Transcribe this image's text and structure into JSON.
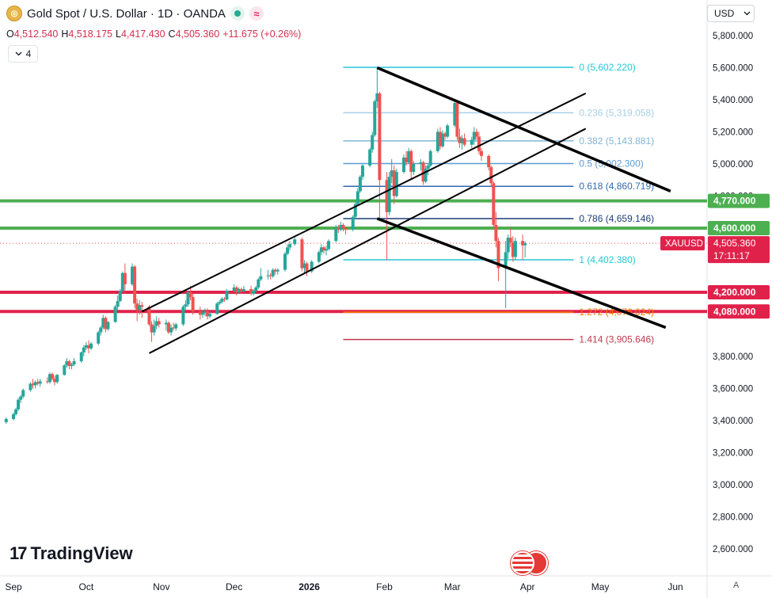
{
  "header": {
    "logo_glyph": "◎",
    "title": "Gold Spot / U.S. Dollar · 1D · OANDA",
    "wave_glyph": "≈"
  },
  "ohlc": {
    "open_label": "O",
    "open": "4,512.540",
    "high_label": "H",
    "high": "4,518.175",
    "low_label": "L",
    "low": "4,417.430",
    "close_label": "C",
    "close": "4,505.360",
    "change": "+11.675 (+0.26%)"
  },
  "indicator_toggle": {
    "count": "4",
    "icon": "chevron-down-icon"
  },
  "currency": "USD",
  "branding": {
    "mark": "17",
    "name": "TradingView"
  },
  "scale_mode_button": "A",
  "colors": {
    "up": "#26a69a",
    "down": "#ef5350",
    "green_level": "#4caf50",
    "red_level": "#e0224b",
    "fib_teal": "#26c6da",
    "fib_blue": "#5b9bd5",
    "fib_navy": "#1a3f7a",
    "fib_orange": "#f57c00",
    "fib_maroon": "#c0394b"
  },
  "chart_data": {
    "type": "candlestick",
    "symbol": "XAUUSD",
    "ylim": [
      2500,
      5900
    ],
    "y_ticks": [
      "5,800.000",
      "5,600.000",
      "5,400.000",
      "5,200.000",
      "5,000.000",
      "4,800.000",
      "3,800.000",
      "3,600.000",
      "3,400.000",
      "3,200.000",
      "3,000.000",
      "2,800.000",
      "2,600.000"
    ],
    "y_tick_values": [
      5800,
      5600,
      5400,
      5200,
      5000,
      4800,
      3800,
      3600,
      3400,
      3200,
      3000,
      2800,
      2600
    ],
    "x_ticks": [
      {
        "label": "Sep",
        "date": "2025-09-01"
      },
      {
        "label": "Oct",
        "date": "2025-10-01"
      },
      {
        "label": "Nov",
        "date": "2025-11-01"
      },
      {
        "label": "Dec",
        "date": "2025-12-01"
      },
      {
        "label": "2026",
        "date": "2026-01-01"
      },
      {
        "label": "Feb",
        "date": "2026-02-01"
      },
      {
        "label": "Mar",
        "date": "2026-03-01"
      },
      {
        "label": "Apr",
        "date": "2026-04-01"
      },
      {
        "label": "May",
        "date": "2026-05-01"
      },
      {
        "label": "Jun",
        "date": "2026-06-01"
      }
    ],
    "candles": [
      [
        "2025-08-29",
        3390,
        3420,
        3380,
        3410
      ],
      [
        "2025-09-01",
        3410,
        3450,
        3400,
        3440
      ],
      [
        "2025-09-02",
        3440,
        3480,
        3430,
        3470
      ],
      [
        "2025-09-03",
        3470,
        3540,
        3460,
        3530
      ],
      [
        "2025-09-04",
        3530,
        3560,
        3510,
        3550
      ],
      [
        "2025-09-05",
        3550,
        3600,
        3540,
        3590
      ],
      [
        "2025-09-08",
        3590,
        3640,
        3580,
        3630
      ],
      [
        "2025-09-09",
        3630,
        3660,
        3600,
        3620
      ],
      [
        "2025-09-10",
        3620,
        3650,
        3600,
        3640
      ],
      [
        "2025-09-11",
        3640,
        3660,
        3620,
        3630
      ],
      [
        "2025-09-12",
        3630,
        3660,
        3610,
        3645
      ],
      [
        "2025-09-15",
        3645,
        3670,
        3630,
        3640
      ],
      [
        "2025-09-16",
        3640,
        3700,
        3630,
        3690
      ],
      [
        "2025-09-17",
        3690,
        3700,
        3650,
        3660
      ],
      [
        "2025-09-18",
        3660,
        3680,
        3620,
        3640
      ],
      [
        "2025-09-19",
        3640,
        3690,
        3630,
        3685
      ],
      [
        "2025-09-22",
        3685,
        3750,
        3680,
        3745
      ],
      [
        "2025-09-23",
        3745,
        3790,
        3730,
        3770
      ],
      [
        "2025-09-24",
        3770,
        3780,
        3720,
        3740
      ],
      [
        "2025-09-25",
        3740,
        3760,
        3720,
        3750
      ],
      [
        "2025-09-26",
        3750,
        3790,
        3740,
        3770
      ],
      [
        "2025-09-29",
        3770,
        3830,
        3760,
        3825
      ],
      [
        "2025-09-30",
        3825,
        3870,
        3800,
        3855
      ],
      [
        "2025-10-01",
        3855,
        3890,
        3840,
        3870
      ],
      [
        "2025-10-02",
        3870,
        3900,
        3820,
        3850
      ],
      [
        "2025-10-03",
        3850,
        3890,
        3840,
        3880
      ],
      [
        "2025-10-06",
        3880,
        3960,
        3870,
        3950
      ],
      [
        "2025-10-07",
        3950,
        3990,
        3930,
        3980
      ],
      [
        "2025-10-08",
        3980,
        4060,
        3970,
        4040
      ],
      [
        "2025-10-09",
        4040,
        4050,
        3950,
        3970
      ],
      [
        "2025-10-10",
        3970,
        4020,
        3960,
        4015
      ],
      [
        "2025-10-13",
        4015,
        4120,
        4010,
        4110
      ],
      [
        "2025-10-14",
        4110,
        4180,
        4090,
        4145
      ],
      [
        "2025-10-15",
        4145,
        4220,
        4140,
        4210
      ],
      [
        "2025-10-16",
        4210,
        4330,
        4200,
        4320
      ],
      [
        "2025-10-17",
        4320,
        4380,
        4200,
        4250
      ],
      [
        "2025-10-20",
        4250,
        4380,
        4240,
        4360
      ],
      [
        "2025-10-21",
        4360,
        4370,
        4100,
        4130
      ],
      [
        "2025-10-22",
        4130,
        4160,
        4020,
        4090
      ],
      [
        "2025-10-23",
        4090,
        4150,
        4060,
        4120
      ],
      [
        "2025-10-24",
        4120,
        4140,
        4040,
        4110
      ],
      [
        "2025-10-27",
        4110,
        4120,
        3990,
        4000
      ],
      [
        "2025-10-28",
        4000,
        4020,
        3890,
        3950
      ],
      [
        "2025-10-29",
        3950,
        4030,
        3930,
        3990
      ],
      [
        "2025-10-30",
        3990,
        4050,
        3970,
        4020
      ],
      [
        "2025-10-31",
        4020,
        4040,
        3980,
        4000
      ],
      [
        "2025-11-03",
        4000,
        4030,
        3960,
        4010
      ],
      [
        "2025-11-04",
        4010,
        4020,
        3940,
        3950
      ],
      [
        "2025-11-05",
        3950,
        4000,
        3930,
        3980
      ],
      [
        "2025-11-06",
        3980,
        4010,
        3960,
        3975
      ],
      [
        "2025-11-07",
        3975,
        4010,
        3960,
        4000
      ],
      [
        "2025-11-10",
        4000,
        4120,
        3990,
        4110
      ],
      [
        "2025-11-11",
        4110,
        4150,
        4090,
        4125
      ],
      [
        "2025-11-12",
        4125,
        4210,
        4110,
        4200
      ],
      [
        "2025-11-13",
        4200,
        4240,
        4150,
        4170
      ],
      [
        "2025-11-14",
        4170,
        4190,
        4060,
        4080
      ],
      [
        "2025-11-17",
        4080,
        4110,
        4030,
        4060
      ],
      [
        "2025-11-18",
        4060,
        4090,
        4040,
        4070
      ],
      [
        "2025-11-19",
        4070,
        4100,
        4050,
        4080
      ],
      [
        "2025-11-20",
        4080,
        4100,
        4030,
        4050
      ],
      [
        "2025-11-21",
        4050,
        4080,
        4040,
        4065
      ],
      [
        "2025-11-24",
        4065,
        4140,
        4060,
        4130
      ],
      [
        "2025-11-25",
        4130,
        4150,
        4120,
        4140
      ],
      [
        "2025-11-26",
        4140,
        4170,
        4130,
        4160
      ],
      [
        "2025-11-27",
        4160,
        4170,
        4140,
        4155
      ],
      [
        "2025-11-28",
        4155,
        4220,
        4150,
        4210
      ],
      [
        "2025-12-01",
        4210,
        4250,
        4200,
        4230
      ],
      [
        "2025-12-02",
        4230,
        4240,
        4180,
        4200
      ],
      [
        "2025-12-03",
        4200,
        4230,
        4190,
        4220
      ],
      [
        "2025-12-04",
        4220,
        4230,
        4190,
        4205
      ],
      [
        "2025-12-05",
        4205,
        4240,
        4200,
        4220
      ],
      [
        "2025-12-08",
        4220,
        4240,
        4180,
        4190
      ],
      [
        "2025-12-09",
        4190,
        4220,
        4180,
        4210
      ],
      [
        "2025-12-10",
        4210,
        4240,
        4200,
        4230
      ],
      [
        "2025-12-11",
        4230,
        4290,
        4220,
        4280
      ],
      [
        "2025-12-12",
        4280,
        4350,
        4270,
        4300
      ],
      [
        "2025-12-15",
        4300,
        4340,
        4280,
        4305
      ],
      [
        "2025-12-16",
        4305,
        4320,
        4280,
        4300
      ],
      [
        "2025-12-17",
        4300,
        4350,
        4290,
        4340
      ],
      [
        "2025-12-18",
        4340,
        4350,
        4310,
        4330
      ],
      [
        "2025-12-19",
        4330,
        4350,
        4310,
        4340
      ],
      [
        "2025-12-22",
        4340,
        4450,
        4330,
        4440
      ],
      [
        "2025-12-23",
        4440,
        4500,
        4430,
        4480
      ],
      [
        "2025-12-24",
        4480,
        4520,
        4460,
        4500
      ],
      [
        "2025-12-26",
        4500,
        4550,
        4490,
        4530
      ],
      [
        "2025-12-29",
        4530,
        4540,
        4330,
        4350
      ],
      [
        "2025-12-30",
        4350,
        4400,
        4320,
        4380
      ],
      [
        "2025-12-31",
        4380,
        4390,
        4300,
        4330
      ],
      [
        "2026-01-02",
        4330,
        4400,
        4320,
        4390
      ],
      [
        "2026-01-05",
        4390,
        4460,
        4380,
        4450
      ],
      [
        "2026-01-06",
        4450,
        4500,
        4430,
        4480
      ],
      [
        "2026-01-07",
        4480,
        4490,
        4440,
        4460
      ],
      [
        "2026-01-08",
        4460,
        4490,
        4430,
        4470
      ],
      [
        "2026-01-09",
        4470,
        4530,
        4460,
        4520
      ],
      [
        "2026-01-12",
        4520,
        4620,
        4510,
        4600
      ],
      [
        "2026-01-13",
        4600,
        4620,
        4570,
        4590
      ],
      [
        "2026-01-14",
        4590,
        4640,
        4580,
        4620
      ],
      [
        "2026-01-15",
        4620,
        4630,
        4580,
        4600
      ],
      [
        "2026-01-16",
        4600,
        4610,
        4560,
        4590
      ],
      [
        "2026-01-19",
        4590,
        4680,
        4580,
        4670
      ],
      [
        "2026-01-20",
        4670,
        4760,
        4660,
        4750
      ],
      [
        "2026-01-21",
        4750,
        4850,
        4740,
        4830
      ],
      [
        "2026-01-22",
        4830,
        4930,
        4820,
        4920
      ],
      [
        "2026-01-23",
        4920,
        5000,
        4900,
        4990
      ],
      [
        "2026-01-26",
        4990,
        5100,
        4980,
        5090
      ],
      [
        "2026-01-27",
        5090,
        5200,
        5070,
        5180
      ],
      [
        "2026-01-28",
        5180,
        5400,
        5170,
        5390
      ],
      [
        "2026-01-29",
        5390,
        5600,
        5350,
        5440
      ],
      [
        "2026-01-30",
        5440,
        5450,
        4650,
        4900
      ],
      [
        "2026-02-02",
        4900,
        4950,
        4400,
        4700
      ],
      [
        "2026-02-03",
        4700,
        4950,
        4680,
        4920
      ],
      [
        "2026-02-04",
        4920,
        5030,
        4880,
        4960
      ],
      [
        "2026-02-05",
        4960,
        4990,
        4750,
        4800
      ],
      [
        "2026-02-06",
        4800,
        4970,
        4790,
        4950
      ],
      [
        "2026-02-09",
        4950,
        5060,
        4940,
        5040
      ],
      [
        "2026-02-10",
        5040,
        5080,
        4990,
        5010
      ],
      [
        "2026-02-11",
        5010,
        5100,
        5000,
        5080
      ],
      [
        "2026-02-12",
        5080,
        5090,
        4900,
        4950
      ],
      [
        "2026-02-13",
        4950,
        5020,
        4930,
        5000
      ],
      [
        "2026-02-16",
        5000,
        5030,
        4960,
        5010
      ],
      [
        "2026-02-17",
        5010,
        5020,
        4870,
        4890
      ],
      [
        "2026-02-18",
        4890,
        4990,
        4880,
        4970
      ],
      [
        "2026-02-19",
        4970,
        5000,
        4930,
        4990
      ],
      [
        "2026-02-20",
        4990,
        5090,
        4980,
        5080
      ],
      [
        "2026-02-23",
        5080,
        5220,
        5070,
        5200
      ],
      [
        "2026-02-24",
        5200,
        5230,
        5090,
        5110
      ],
      [
        "2026-02-25",
        5110,
        5210,
        5100,
        5190
      ],
      [
        "2026-02-26",
        5190,
        5200,
        5150,
        5170
      ],
      [
        "2026-02-27",
        5170,
        5250,
        5160,
        5240
      ],
      [
        "2026-03-02",
        5240,
        5400,
        5230,
        5380
      ],
      [
        "2026-03-03",
        5380,
        5390,
        5150,
        5170
      ],
      [
        "2026-03-04",
        5170,
        5220,
        5100,
        5130
      ],
      [
        "2026-03-05",
        5130,
        5180,
        5090,
        5160
      ],
      [
        "2026-03-06",
        5160,
        5190,
        5110,
        5120
      ],
      [
        "2026-03-09",
        5120,
        5170,
        5100,
        5150
      ],
      [
        "2026-03-10",
        5150,
        5230,
        5120,
        5200
      ],
      [
        "2026-03-11",
        5200,
        5220,
        5150,
        5170
      ],
      [
        "2026-03-12",
        5170,
        5200,
        5060,
        5080
      ],
      [
        "2026-03-13",
        5080,
        5100,
        5020,
        5050
      ],
      [
        "2026-03-16",
        5050,
        5060,
        4960,
        4980
      ],
      [
        "2026-03-17",
        4980,
        4990,
        4860,
        4880
      ],
      [
        "2026-03-18",
        4880,
        4890,
        4600,
        4620
      ],
      [
        "2026-03-19",
        4620,
        4700,
        4480,
        4520
      ],
      [
        "2026-03-20",
        4520,
        4540,
        4270,
        4350
      ],
      [
        "2026-03-23",
        4350,
        4520,
        4100,
        4450
      ],
      [
        "2026-03-24",
        4450,
        4560,
        4410,
        4540
      ],
      [
        "2026-03-25",
        4540,
        4600,
        4480,
        4510
      ],
      [
        "2026-03-26",
        4510,
        4550,
        4390,
        4420
      ],
      [
        "2026-03-27",
        4420,
        4540,
        4400,
        4520
      ],
      [
        "2026-03-30",
        4520,
        4560,
        4400,
        4493
      ],
      [
        "2026-03-31",
        4493,
        4518,
        4417,
        4505
      ]
    ],
    "horizontal_levels": [
      {
        "label": "4,770.000",
        "value": 4770,
        "color": "#4caf50"
      },
      {
        "label": "4,600.000",
        "value": 4600,
        "color": "#4caf50"
      },
      {
        "label": "4,200.000",
        "value": 4200,
        "color": "#e0224b"
      },
      {
        "label": "4,080.000",
        "value": 4080,
        "color": "#e0224b"
      }
    ],
    "fibonacci": {
      "start_date": "2026-01-15",
      "end_date": "2026-04-20",
      "levels": [
        {
          "ratio": "0",
          "label": "0 (5,602.220)",
          "value": 5602.22,
          "color": "#26c6da"
        },
        {
          "ratio": "0.236",
          "label": "0.236 (5,319.058)",
          "value": 5319.058,
          "color": "#a6cfe6"
        },
        {
          "ratio": "0.382",
          "label": "0.382 (5,143.881)",
          "value": 5143.881,
          "color": "#7fb6d8"
        },
        {
          "ratio": "0.5",
          "label": "0.5 (5,002.300)",
          "value": 5002.3,
          "color": "#5b9bd5"
        },
        {
          "ratio": "0.618",
          "label": "0.618 (4,860.719)",
          "value": 4860.719,
          "color": "#2f6bb0"
        },
        {
          "ratio": "0.786",
          "label": "0.786 (4,659.146)",
          "value": 4659.146,
          "color": "#1a3f7a"
        },
        {
          "ratio": "1",
          "label": "1 (4,402.380)",
          "value": 4402.38,
          "color": "#26c6da"
        },
        {
          "ratio": "1.272",
          "label": "1.272 (4,076.024)",
          "value": 4076.024,
          "color": "#f57c00"
        },
        {
          "ratio": "1.414",
          "label": "1.414 (3,905.646)",
          "value": 3905.646,
          "color": "#c0394b"
        }
      ]
    },
    "trend_lines": [
      {
        "name": "channel-lower",
        "from": [
          "2025-10-27",
          3820
        ],
        "to": [
          "2026-04-25",
          5220
        ],
        "color": "#000000"
      },
      {
        "name": "channel-upper",
        "from": [
          "2025-10-24",
          4080
        ],
        "to": [
          "2026-04-25",
          5440
        ],
        "color": "#000000"
      },
      {
        "name": "wedge-top",
        "from": [
          "2026-01-29",
          5600
        ],
        "to": [
          "2026-05-30",
          4830
        ],
        "color": "#000000"
      },
      {
        "name": "wedge-bottom",
        "from": [
          "2026-01-29",
          4660
        ],
        "to": [
          "2026-05-28",
          3980
        ],
        "color": "#000000"
      }
    ],
    "last_price": {
      "symbol_label": "XAUUSD",
      "price": "4,505.360",
      "value": 4505.36,
      "countdown": "17:11:17"
    }
  }
}
